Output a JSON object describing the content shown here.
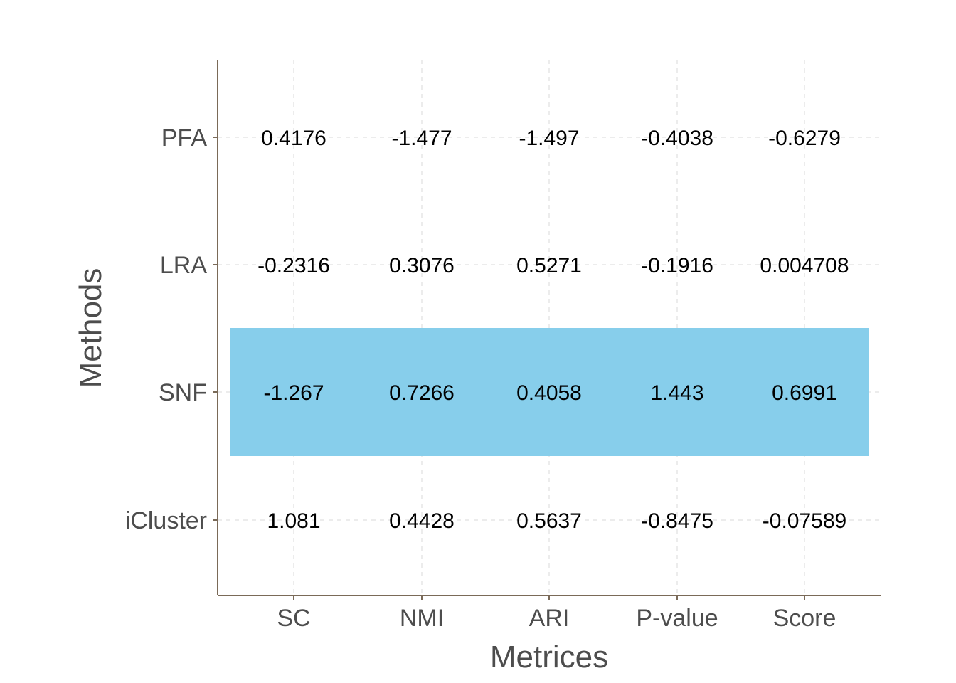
{
  "chart_data": {
    "type": "table",
    "xlabel": "Metrices",
    "ylabel": "Methods",
    "columns": [
      "SC",
      "NMI",
      "ARI",
      "P-value",
      "Score"
    ],
    "rows": [
      "PFA",
      "LRA",
      "SNF",
      "iCluster"
    ],
    "values": [
      [
        "0.4176",
        "-1.477",
        "-1.497",
        "-0.4038",
        "-0.6279"
      ],
      [
        "-0.2316",
        "0.3076",
        "0.5271",
        "-0.1916",
        "0.004708"
      ],
      [
        "-1.267",
        "0.7266",
        "0.4058",
        "1.443",
        "0.6991"
      ],
      [
        "1.081",
        "0.4428",
        "0.5637",
        "-0.8475",
        "-0.07589"
      ]
    ],
    "highlight_row": "SNF",
    "highlight_color": "#87CEEB",
    "grid": true,
    "legend": "none"
  }
}
